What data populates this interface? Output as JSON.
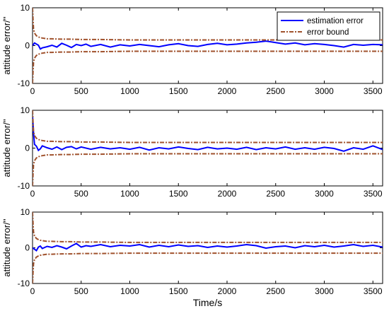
{
  "chart_data": [
    {
      "type": "line",
      "ylabel": "attitude error/''",
      "xlabel": "",
      "xlim": [
        0,
        3600
      ],
      "ylim": [
        -10,
        10
      ],
      "xticks": [
        0,
        500,
        1000,
        1500,
        2000,
        2500,
        3000,
        3500
      ],
      "yticks": [
        -10,
        0,
        10
      ],
      "grid": false,
      "legend": {
        "placement": "top-right",
        "entries": [
          "estimation error",
          "error bound"
        ]
      },
      "series": [
        {
          "name": "estimation error",
          "color": "#0000ff",
          "style": "solid",
          "x": [
            0,
            20,
            40,
            60,
            80,
            100,
            150,
            200,
            250,
            300,
            350,
            400,
            450,
            500,
            550,
            600,
            700,
            800,
            900,
            1000,
            1100,
            1200,
            1300,
            1400,
            1500,
            1600,
            1700,
            1800,
            1900,
            2000,
            2100,
            2200,
            2300,
            2400,
            2500,
            2600,
            2700,
            2800,
            2900,
            3000,
            3100,
            3200,
            3300,
            3400,
            3500,
            3600
          ],
          "y": [
            0,
            0.7,
            0.4,
            0.1,
            -0.9,
            -0.6,
            -0.3,
            0.1,
            -0.4,
            0.6,
            0.1,
            -0.5,
            0.3,
            0.0,
            0.4,
            -0.2,
            0.3,
            -0.4,
            0.2,
            -0.1,
            0.3,
            0.0,
            -0.3,
            0.2,
            0.5,
            0.0,
            -0.2,
            0.3,
            0.6,
            0.2,
            0.4,
            0.7,
            0.9,
            1.2,
            0.8,
            0.4,
            0.7,
            0.2,
            0.5,
            0.3,
            0.0,
            -0.4,
            0.3,
            0.1,
            0.3,
            0.2
          ]
        },
        {
          "name": "error bound",
          "color": "#a0522d",
          "style": "dashdot",
          "x": [
            0,
            5,
            10,
            20,
            40,
            60,
            80,
            100,
            150,
            200,
            300,
            400,
            500,
            700,
            1000,
            1500,
            2000,
            2500,
            3000,
            3500,
            3600
          ],
          "y": [
            10,
            7.0,
            4.5,
            3.3,
            2.6,
            2.3,
            2.1,
            2.0,
            1.8,
            1.8,
            1.7,
            1.7,
            1.6,
            1.6,
            1.5,
            1.5,
            1.5,
            1.5,
            1.5,
            1.5,
            1.5
          ]
        }
      ]
    },
    {
      "type": "line",
      "ylabel": "attitude error/''",
      "xlabel": "",
      "xlim": [
        0,
        3600
      ],
      "ylim": [
        -10,
        10
      ],
      "xticks": [
        0,
        500,
        1000,
        1500,
        2000,
        2500,
        3000,
        3500
      ],
      "yticks": [
        -10,
        0,
        10
      ],
      "grid": false,
      "series": [
        {
          "name": "estimation error",
          "color": "#0000ff",
          "style": "solid",
          "x": [
            0,
            10,
            20,
            40,
            60,
            80,
            100,
            150,
            200,
            250,
            300,
            350,
            400,
            450,
            500,
            600,
            700,
            800,
            900,
            1000,
            1100,
            1200,
            1300,
            1400,
            1500,
            1600,
            1700,
            1800,
            1900,
            2000,
            2100,
            2200,
            2300,
            2400,
            2500,
            2600,
            2700,
            2800,
            2900,
            3000,
            3100,
            3200,
            3300,
            3400,
            3500,
            3600
          ],
          "y": [
            8.5,
            4.0,
            1.0,
            0.5,
            -0.6,
            -0.2,
            0.6,
            0.1,
            -0.3,
            0.3,
            -0.4,
            0.2,
            0.4,
            -0.2,
            0.3,
            -0.3,
            0.2,
            -0.2,
            0.1,
            -0.3,
            0.2,
            -0.5,
            0.1,
            -0.2,
            0.3,
            -0.1,
            -0.4,
            0.2,
            -0.2,
            0.0,
            -0.3,
            0.2,
            -0.4,
            0.1,
            -0.2,
            0.3,
            -0.3,
            0.1,
            -0.3,
            0.2,
            -0.1,
            -0.8,
            0.1,
            -0.3,
            0.6,
            -0.4
          ]
        },
        {
          "name": "error bound",
          "color": "#a0522d",
          "style": "dashdot",
          "x": [
            0,
            5,
            10,
            20,
            40,
            60,
            80,
            100,
            150,
            200,
            300,
            400,
            500,
            700,
            1000,
            1500,
            2000,
            2500,
            3000,
            3500,
            3600
          ],
          "y": [
            10,
            7.0,
            4.5,
            3.3,
            2.6,
            2.3,
            2.1,
            2.0,
            1.8,
            1.8,
            1.7,
            1.7,
            1.6,
            1.6,
            1.5,
            1.5,
            1.5,
            1.5,
            1.5,
            1.5,
            1.5
          ]
        }
      ]
    },
    {
      "type": "line",
      "ylabel": "attitude error/''",
      "xlabel": "Time/s",
      "xlim": [
        0,
        3600
      ],
      "ylim": [
        -10,
        10
      ],
      "xticks": [
        0,
        500,
        1000,
        1500,
        2000,
        2500,
        3000,
        3500
      ],
      "yticks": [
        -10,
        0,
        10
      ],
      "grid": false,
      "series": [
        {
          "name": "estimation error",
          "color": "#0000ff",
          "style": "solid",
          "x": [
            0,
            20,
            40,
            60,
            80,
            100,
            150,
            200,
            250,
            300,
            350,
            400,
            450,
            500,
            550,
            600,
            700,
            800,
            900,
            1000,
            1100,
            1200,
            1300,
            1400,
            1500,
            1600,
            1700,
            1800,
            1900,
            2000,
            2100,
            2200,
            2300,
            2400,
            2500,
            2600,
            2700,
            2800,
            2900,
            3000,
            3100,
            3200,
            3300,
            3400,
            3500,
            3600
          ],
          "y": [
            0,
            -0.4,
            -0.8,
            0.2,
            0.5,
            -0.2,
            0.4,
            0.1,
            0.6,
            0.2,
            -0.3,
            0.5,
            1.2,
            0.2,
            0.6,
            0.4,
            0.9,
            0.3,
            0.7,
            0.5,
            0.9,
            0.2,
            0.7,
            0.3,
            0.8,
            0.4,
            0.6,
            0.1,
            0.5,
            0.2,
            0.5,
            0.9,
            0.6,
            -0.1,
            0.3,
            0.5,
            0.0,
            0.6,
            0.3,
            0.7,
            0.2,
            0.5,
            0.9,
            0.4,
            0.7,
            0.2
          ]
        },
        {
          "name": "error bound",
          "color": "#a0522d",
          "style": "dashdot",
          "x": [
            0,
            5,
            10,
            20,
            40,
            60,
            80,
            100,
            150,
            200,
            300,
            400,
            500,
            700,
            1000,
            1500,
            2000,
            2500,
            3000,
            3500,
            3600
          ],
          "y": [
            10,
            7.0,
            4.5,
            3.3,
            2.6,
            2.3,
            2.1,
            2.0,
            1.8,
            1.8,
            1.7,
            1.7,
            1.6,
            1.6,
            1.5,
            1.5,
            1.5,
            1.5,
            1.5,
            1.5,
            1.5
          ]
        }
      ]
    }
  ]
}
